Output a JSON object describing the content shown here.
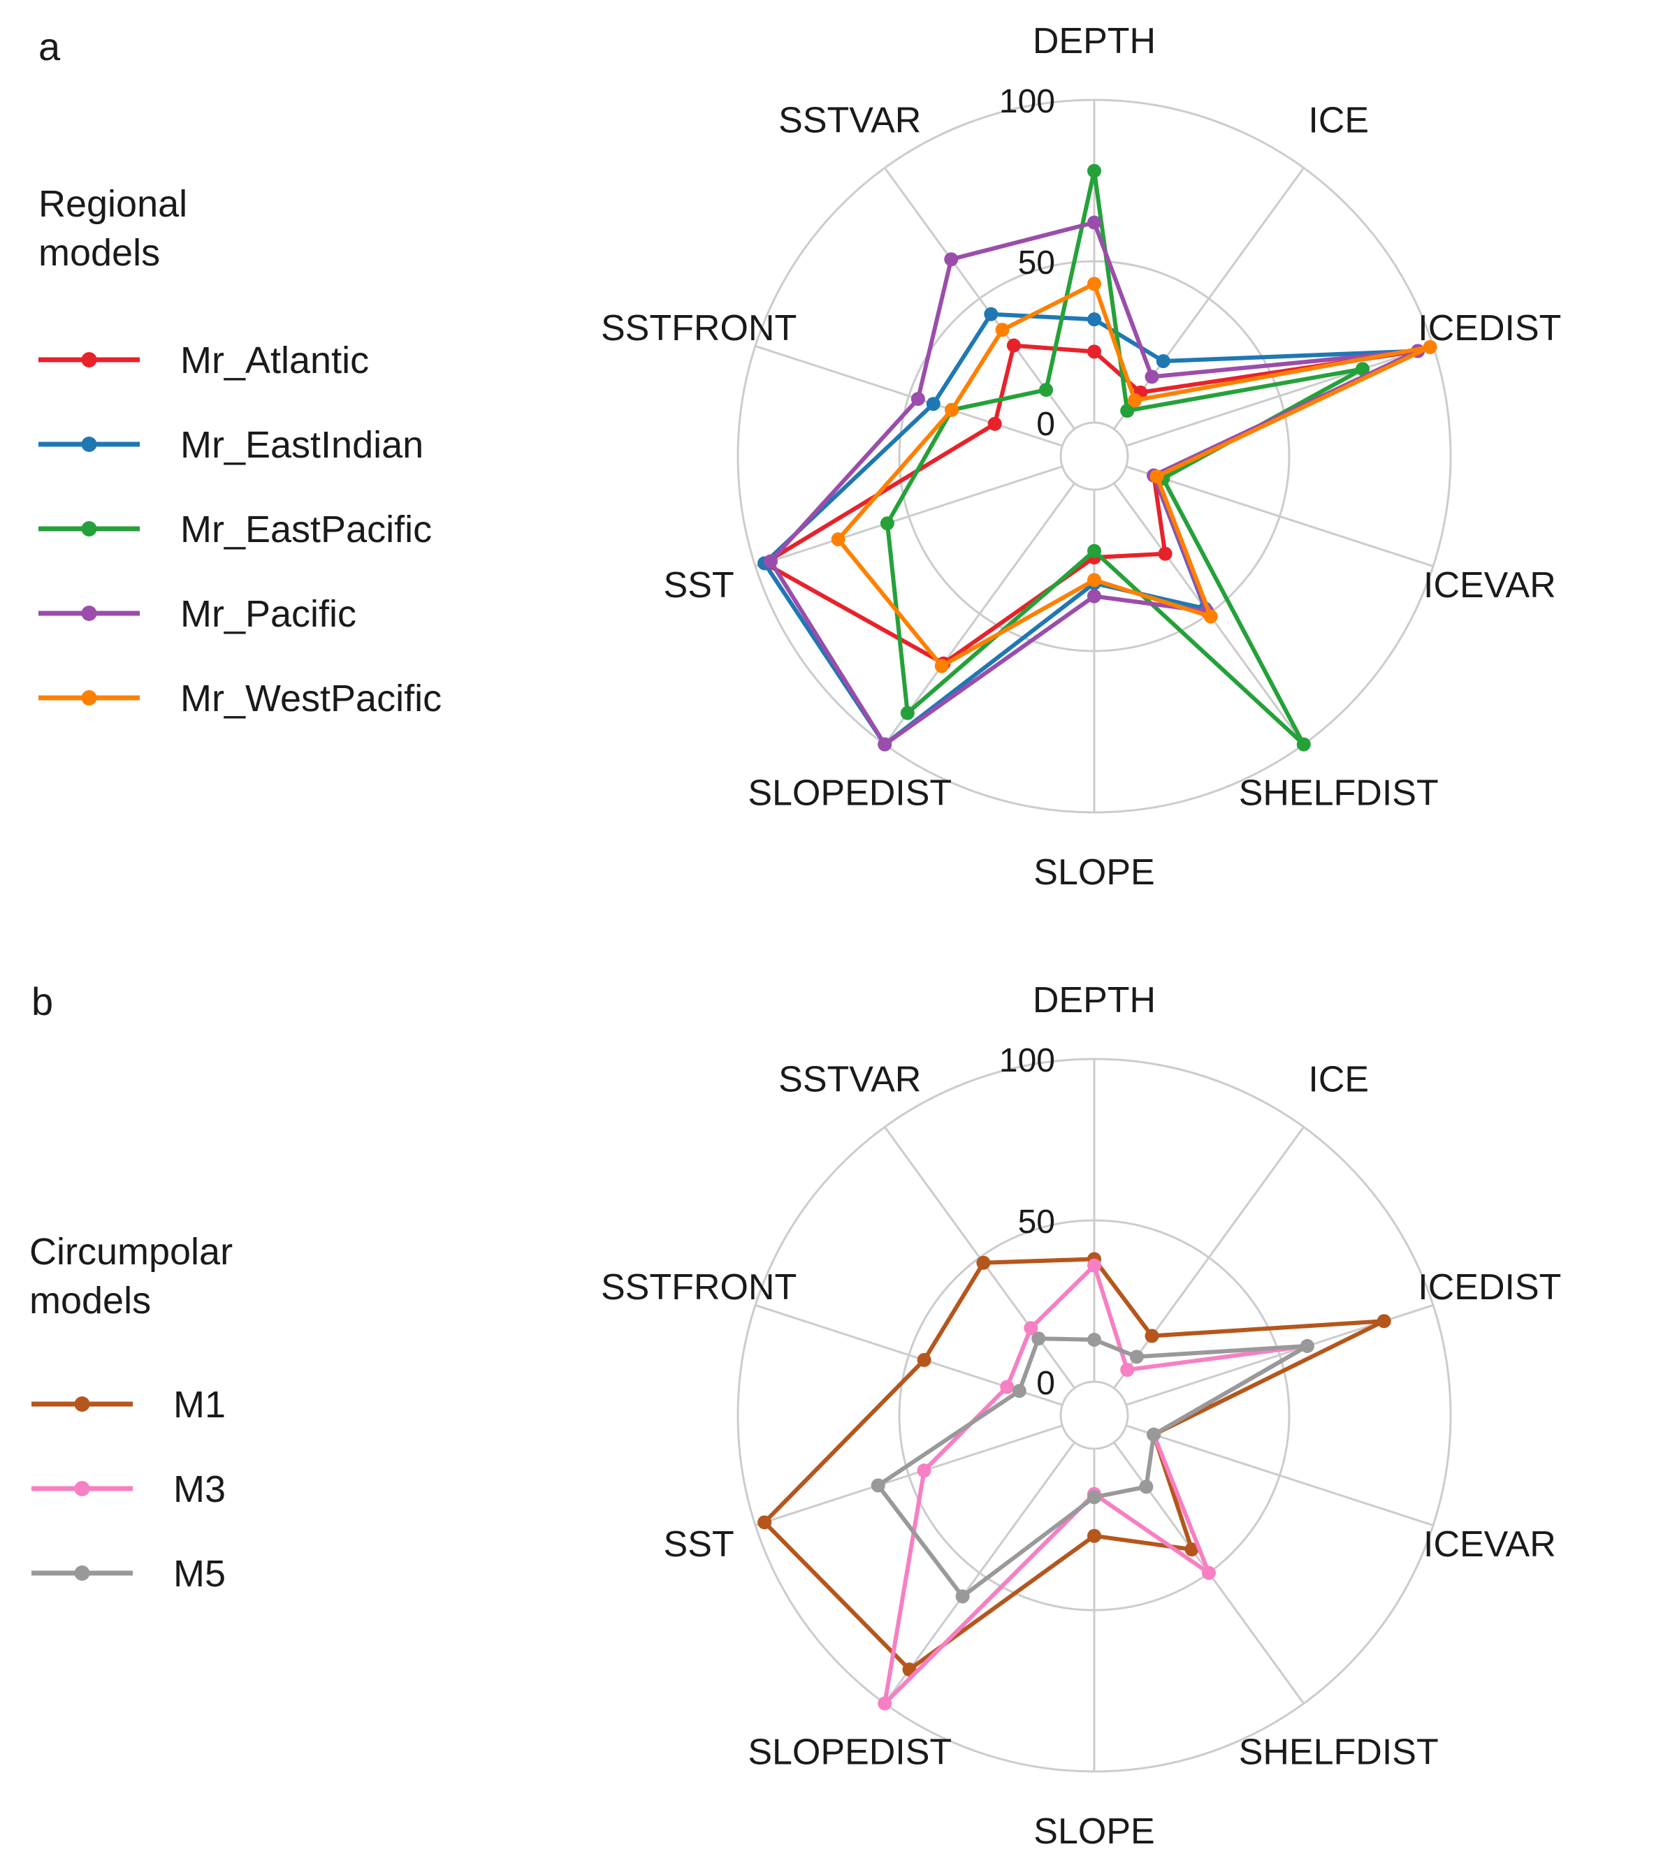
{
  "chart_data": [
    {
      "type": "radar",
      "panel_label": "a",
      "axes": [
        "DEPTH",
        "ICE",
        "ICEDIST",
        "ICEVAR",
        "SHELFDIST",
        "SLOPE",
        "SLOPEDIST",
        "SST",
        "SSTFRONT",
        "SSTVAR"
      ],
      "rlim": [
        0,
        100
      ],
      "ticks": [
        {
          "value": 0,
          "label": "0"
        },
        {
          "value": 50,
          "label": "50"
        },
        {
          "value": 100,
          "label": "100"
        }
      ],
      "grid": true,
      "legend": {
        "title_lines": [
          "Regional",
          "models"
        ],
        "placement": "left"
      },
      "series": [
        {
          "name": "Mr_Atlantic",
          "color": "#e8222a",
          "values": [
            22,
            14,
            95,
            9,
            27,
            21,
            69,
            97,
            22,
            32
          ]
        },
        {
          "name": "Mr_EastIndian",
          "color": "#1f78b4",
          "values": [
            32,
            26,
            95,
            9,
            48,
            29,
            100,
            97,
            42,
            44
          ]
        },
        {
          "name": "Mr_EastPacific",
          "color": "#25a13a",
          "values": [
            78,
            7,
            77,
            12,
            100,
            19,
            88,
            57,
            36,
            15
          ]
        },
        {
          "name": "Mr_Pacific",
          "color": "#9b4dab",
          "values": [
            62,
            20,
            95,
            9,
            49,
            33,
            100,
            95,
            47,
            65
          ]
        },
        {
          "name": "Mr_WestPacific",
          "color": "#ff8000",
          "values": [
            43,
            11,
            99,
            10,
            51,
            28,
            70,
            73,
            36,
            38
          ]
        }
      ]
    },
    {
      "type": "radar",
      "panel_label": "b",
      "axes": [
        "DEPTH",
        "ICE",
        "ICEDIST",
        "ICEVAR",
        "SHELFDIST",
        "SLOPE",
        "SLOPEDIST",
        "SST",
        "SSTFRONT",
        "SSTVAR"
      ],
      "rlim": [
        0,
        100
      ],
      "ticks": [
        {
          "value": 0,
          "label": "0"
        },
        {
          "value": 50,
          "label": "50"
        },
        {
          "value": 100,
          "label": "100"
        }
      ],
      "grid": true,
      "legend": {
        "title_lines": [
          "Circumpolar",
          "models"
        ],
        "placement": "left"
      },
      "series": [
        {
          "name": "M1",
          "color": "#b5561c",
          "values": [
            38,
            20,
            84,
            9,
            41,
            27,
            87,
            97,
            45,
            48
          ]
        },
        {
          "name": "M3",
          "color": "#f77fc3",
          "values": [
            36,
            7,
            59,
            9,
            50,
            14,
            100,
            45,
            18,
            23
          ]
        },
        {
          "name": "M5",
          "color": "#999999",
          "values": [
            13,
            12,
            59,
            9,
            17,
            15,
            59,
            60,
            14,
            19
          ]
        }
      ]
    }
  ]
}
